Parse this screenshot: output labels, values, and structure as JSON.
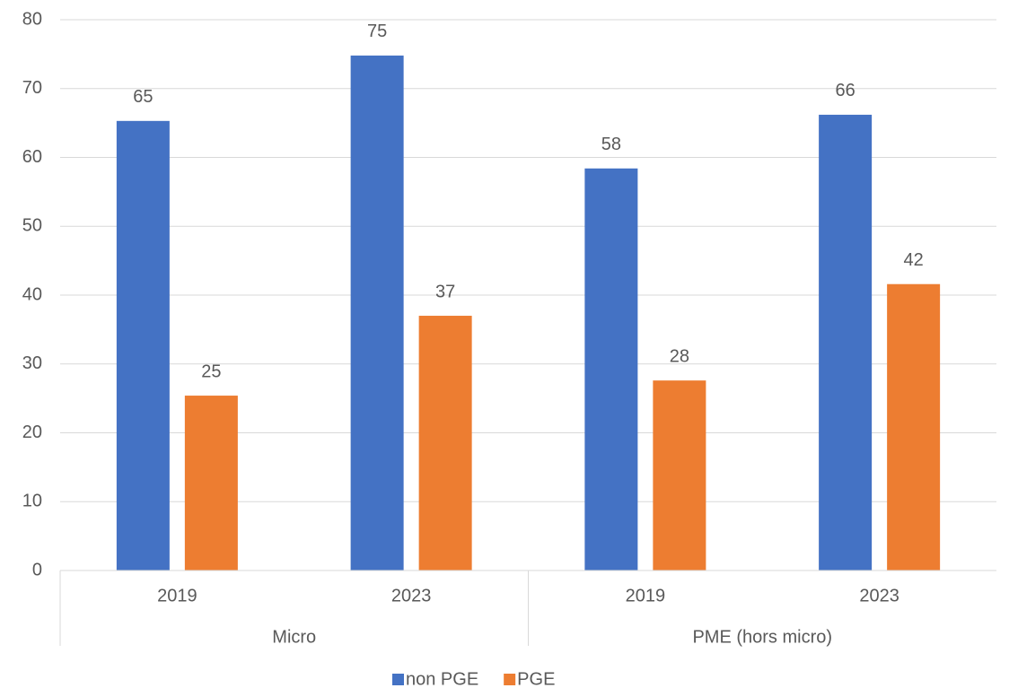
{
  "chart_data": {
    "type": "bar",
    "groups": [
      {
        "name": "Micro",
        "categories": [
          "2019",
          "2023"
        ]
      },
      {
        "name": "PME (hors micro)",
        "categories": [
          "2019",
          "2023"
        ]
      }
    ],
    "series": [
      {
        "name": "non PGE",
        "color": "#4472c4",
        "values": [
          65.3,
          74.8,
          58.4,
          66.2
        ],
        "value_labels": [
          "65",
          "75",
          "58",
          "66"
        ]
      },
      {
        "name": "PGE",
        "color": "#ed7d31",
        "values": [
          25.4,
          37,
          27.6,
          41.6
        ],
        "value_labels": [
          "25",
          "37",
          "28",
          "42"
        ]
      }
    ],
    "ylim": [
      0,
      80
    ],
    "yticks": [
      0,
      10,
      20,
      30,
      40,
      50,
      60,
      70,
      80
    ],
    "grid": true,
    "legend": "bottom"
  }
}
